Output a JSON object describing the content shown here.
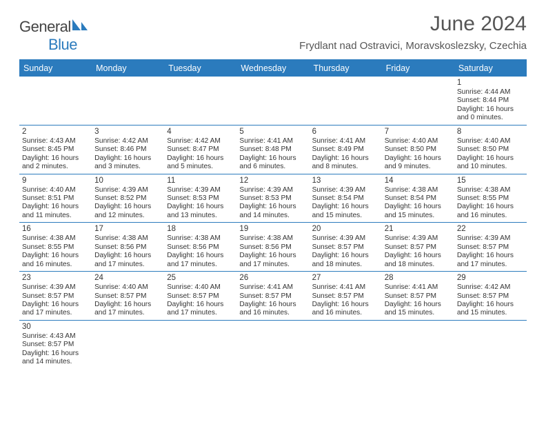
{
  "brand": {
    "part1": "General",
    "part2": "Blue"
  },
  "title": "June 2024",
  "location": "Frydlant nad Ostravici, Moravskoslezsky, Czechia",
  "colors": {
    "accent": "#2b7bbd",
    "text": "#333333",
    "bg": "#ffffff"
  },
  "dayHeaders": [
    "Sunday",
    "Monday",
    "Tuesday",
    "Wednesday",
    "Thursday",
    "Friday",
    "Saturday"
  ],
  "weeks": [
    [
      null,
      null,
      null,
      null,
      null,
      null,
      {
        "n": "1",
        "sr": "Sunrise: 4:44 AM",
        "ss": "Sunset: 8:44 PM",
        "dl1": "Daylight: 16 hours",
        "dl2": "and 0 minutes."
      }
    ],
    [
      {
        "n": "2",
        "sr": "Sunrise: 4:43 AM",
        "ss": "Sunset: 8:45 PM",
        "dl1": "Daylight: 16 hours",
        "dl2": "and 2 minutes."
      },
      {
        "n": "3",
        "sr": "Sunrise: 4:42 AM",
        "ss": "Sunset: 8:46 PM",
        "dl1": "Daylight: 16 hours",
        "dl2": "and 3 minutes."
      },
      {
        "n": "4",
        "sr": "Sunrise: 4:42 AM",
        "ss": "Sunset: 8:47 PM",
        "dl1": "Daylight: 16 hours",
        "dl2": "and 5 minutes."
      },
      {
        "n": "5",
        "sr": "Sunrise: 4:41 AM",
        "ss": "Sunset: 8:48 PM",
        "dl1": "Daylight: 16 hours",
        "dl2": "and 6 minutes."
      },
      {
        "n": "6",
        "sr": "Sunrise: 4:41 AM",
        "ss": "Sunset: 8:49 PM",
        "dl1": "Daylight: 16 hours",
        "dl2": "and 8 minutes."
      },
      {
        "n": "7",
        "sr": "Sunrise: 4:40 AM",
        "ss": "Sunset: 8:50 PM",
        "dl1": "Daylight: 16 hours",
        "dl2": "and 9 minutes."
      },
      {
        "n": "8",
        "sr": "Sunrise: 4:40 AM",
        "ss": "Sunset: 8:50 PM",
        "dl1": "Daylight: 16 hours",
        "dl2": "and 10 minutes."
      }
    ],
    [
      {
        "n": "9",
        "sr": "Sunrise: 4:40 AM",
        "ss": "Sunset: 8:51 PM",
        "dl1": "Daylight: 16 hours",
        "dl2": "and 11 minutes."
      },
      {
        "n": "10",
        "sr": "Sunrise: 4:39 AM",
        "ss": "Sunset: 8:52 PM",
        "dl1": "Daylight: 16 hours",
        "dl2": "and 12 minutes."
      },
      {
        "n": "11",
        "sr": "Sunrise: 4:39 AM",
        "ss": "Sunset: 8:53 PM",
        "dl1": "Daylight: 16 hours",
        "dl2": "and 13 minutes."
      },
      {
        "n": "12",
        "sr": "Sunrise: 4:39 AM",
        "ss": "Sunset: 8:53 PM",
        "dl1": "Daylight: 16 hours",
        "dl2": "and 14 minutes."
      },
      {
        "n": "13",
        "sr": "Sunrise: 4:39 AM",
        "ss": "Sunset: 8:54 PM",
        "dl1": "Daylight: 16 hours",
        "dl2": "and 15 minutes."
      },
      {
        "n": "14",
        "sr": "Sunrise: 4:38 AM",
        "ss": "Sunset: 8:54 PM",
        "dl1": "Daylight: 16 hours",
        "dl2": "and 15 minutes."
      },
      {
        "n": "15",
        "sr": "Sunrise: 4:38 AM",
        "ss": "Sunset: 8:55 PM",
        "dl1": "Daylight: 16 hours",
        "dl2": "and 16 minutes."
      }
    ],
    [
      {
        "n": "16",
        "sr": "Sunrise: 4:38 AM",
        "ss": "Sunset: 8:55 PM",
        "dl1": "Daylight: 16 hours",
        "dl2": "and 16 minutes."
      },
      {
        "n": "17",
        "sr": "Sunrise: 4:38 AM",
        "ss": "Sunset: 8:56 PM",
        "dl1": "Daylight: 16 hours",
        "dl2": "and 17 minutes."
      },
      {
        "n": "18",
        "sr": "Sunrise: 4:38 AM",
        "ss": "Sunset: 8:56 PM",
        "dl1": "Daylight: 16 hours",
        "dl2": "and 17 minutes."
      },
      {
        "n": "19",
        "sr": "Sunrise: 4:38 AM",
        "ss": "Sunset: 8:56 PM",
        "dl1": "Daylight: 16 hours",
        "dl2": "and 17 minutes."
      },
      {
        "n": "20",
        "sr": "Sunrise: 4:39 AM",
        "ss": "Sunset: 8:57 PM",
        "dl1": "Daylight: 16 hours",
        "dl2": "and 18 minutes."
      },
      {
        "n": "21",
        "sr": "Sunrise: 4:39 AM",
        "ss": "Sunset: 8:57 PM",
        "dl1": "Daylight: 16 hours",
        "dl2": "and 18 minutes."
      },
      {
        "n": "22",
        "sr": "Sunrise: 4:39 AM",
        "ss": "Sunset: 8:57 PM",
        "dl1": "Daylight: 16 hours",
        "dl2": "and 17 minutes."
      }
    ],
    [
      {
        "n": "23",
        "sr": "Sunrise: 4:39 AM",
        "ss": "Sunset: 8:57 PM",
        "dl1": "Daylight: 16 hours",
        "dl2": "and 17 minutes."
      },
      {
        "n": "24",
        "sr": "Sunrise: 4:40 AM",
        "ss": "Sunset: 8:57 PM",
        "dl1": "Daylight: 16 hours",
        "dl2": "and 17 minutes."
      },
      {
        "n": "25",
        "sr": "Sunrise: 4:40 AM",
        "ss": "Sunset: 8:57 PM",
        "dl1": "Daylight: 16 hours",
        "dl2": "and 17 minutes."
      },
      {
        "n": "26",
        "sr": "Sunrise: 4:41 AM",
        "ss": "Sunset: 8:57 PM",
        "dl1": "Daylight: 16 hours",
        "dl2": "and 16 minutes."
      },
      {
        "n": "27",
        "sr": "Sunrise: 4:41 AM",
        "ss": "Sunset: 8:57 PM",
        "dl1": "Daylight: 16 hours",
        "dl2": "and 16 minutes."
      },
      {
        "n": "28",
        "sr": "Sunrise: 4:41 AM",
        "ss": "Sunset: 8:57 PM",
        "dl1": "Daylight: 16 hours",
        "dl2": "and 15 minutes."
      },
      {
        "n": "29",
        "sr": "Sunrise: 4:42 AM",
        "ss": "Sunset: 8:57 PM",
        "dl1": "Daylight: 16 hours",
        "dl2": "and 15 minutes."
      }
    ],
    [
      {
        "n": "30",
        "sr": "Sunrise: 4:43 AM",
        "ss": "Sunset: 8:57 PM",
        "dl1": "Daylight: 16 hours",
        "dl2": "and 14 minutes."
      },
      null,
      null,
      null,
      null,
      null,
      null
    ]
  ]
}
